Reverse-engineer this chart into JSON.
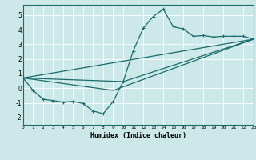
{
  "xlabel": "Humidex (Indice chaleur)",
  "bg_color": "#cce8e8",
  "grid_color": "#ffffff",
  "line_color": "#1a6b6b",
  "xlim": [
    0,
    23
  ],
  "ylim": [
    -2.5,
    5.7
  ],
  "xticks": [
    0,
    1,
    2,
    3,
    4,
    5,
    6,
    7,
    8,
    9,
    10,
    11,
    12,
    13,
    14,
    15,
    16,
    17,
    18,
    19,
    20,
    21,
    22,
    23
  ],
  "yticks": [
    -2,
    -1,
    0,
    1,
    2,
    3,
    4,
    5
  ],
  "main_curve_x": [
    0,
    1,
    2,
    3,
    4,
    5,
    6,
    7,
    8,
    9,
    10,
    11,
    12,
    13,
    14,
    15,
    16,
    17,
    18,
    19,
    20,
    21,
    22,
    23
  ],
  "main_curve_y": [
    0.7,
    -0.15,
    -0.75,
    -0.85,
    -0.95,
    -0.9,
    -1.05,
    -1.55,
    -1.75,
    -0.9,
    0.45,
    2.55,
    4.1,
    4.9,
    5.4,
    4.2,
    4.05,
    3.55,
    3.6,
    3.5,
    3.55,
    3.55,
    3.55,
    3.35
  ],
  "line2_x": [
    0,
    23
  ],
  "line2_y": [
    0.7,
    3.35
  ],
  "line3_x": [
    0,
    9,
    23
  ],
  "line3_y": [
    0.7,
    -0.15,
    3.35
  ],
  "line4_x": [
    0,
    10,
    23
  ],
  "line4_y": [
    0.7,
    0.45,
    3.35
  ]
}
